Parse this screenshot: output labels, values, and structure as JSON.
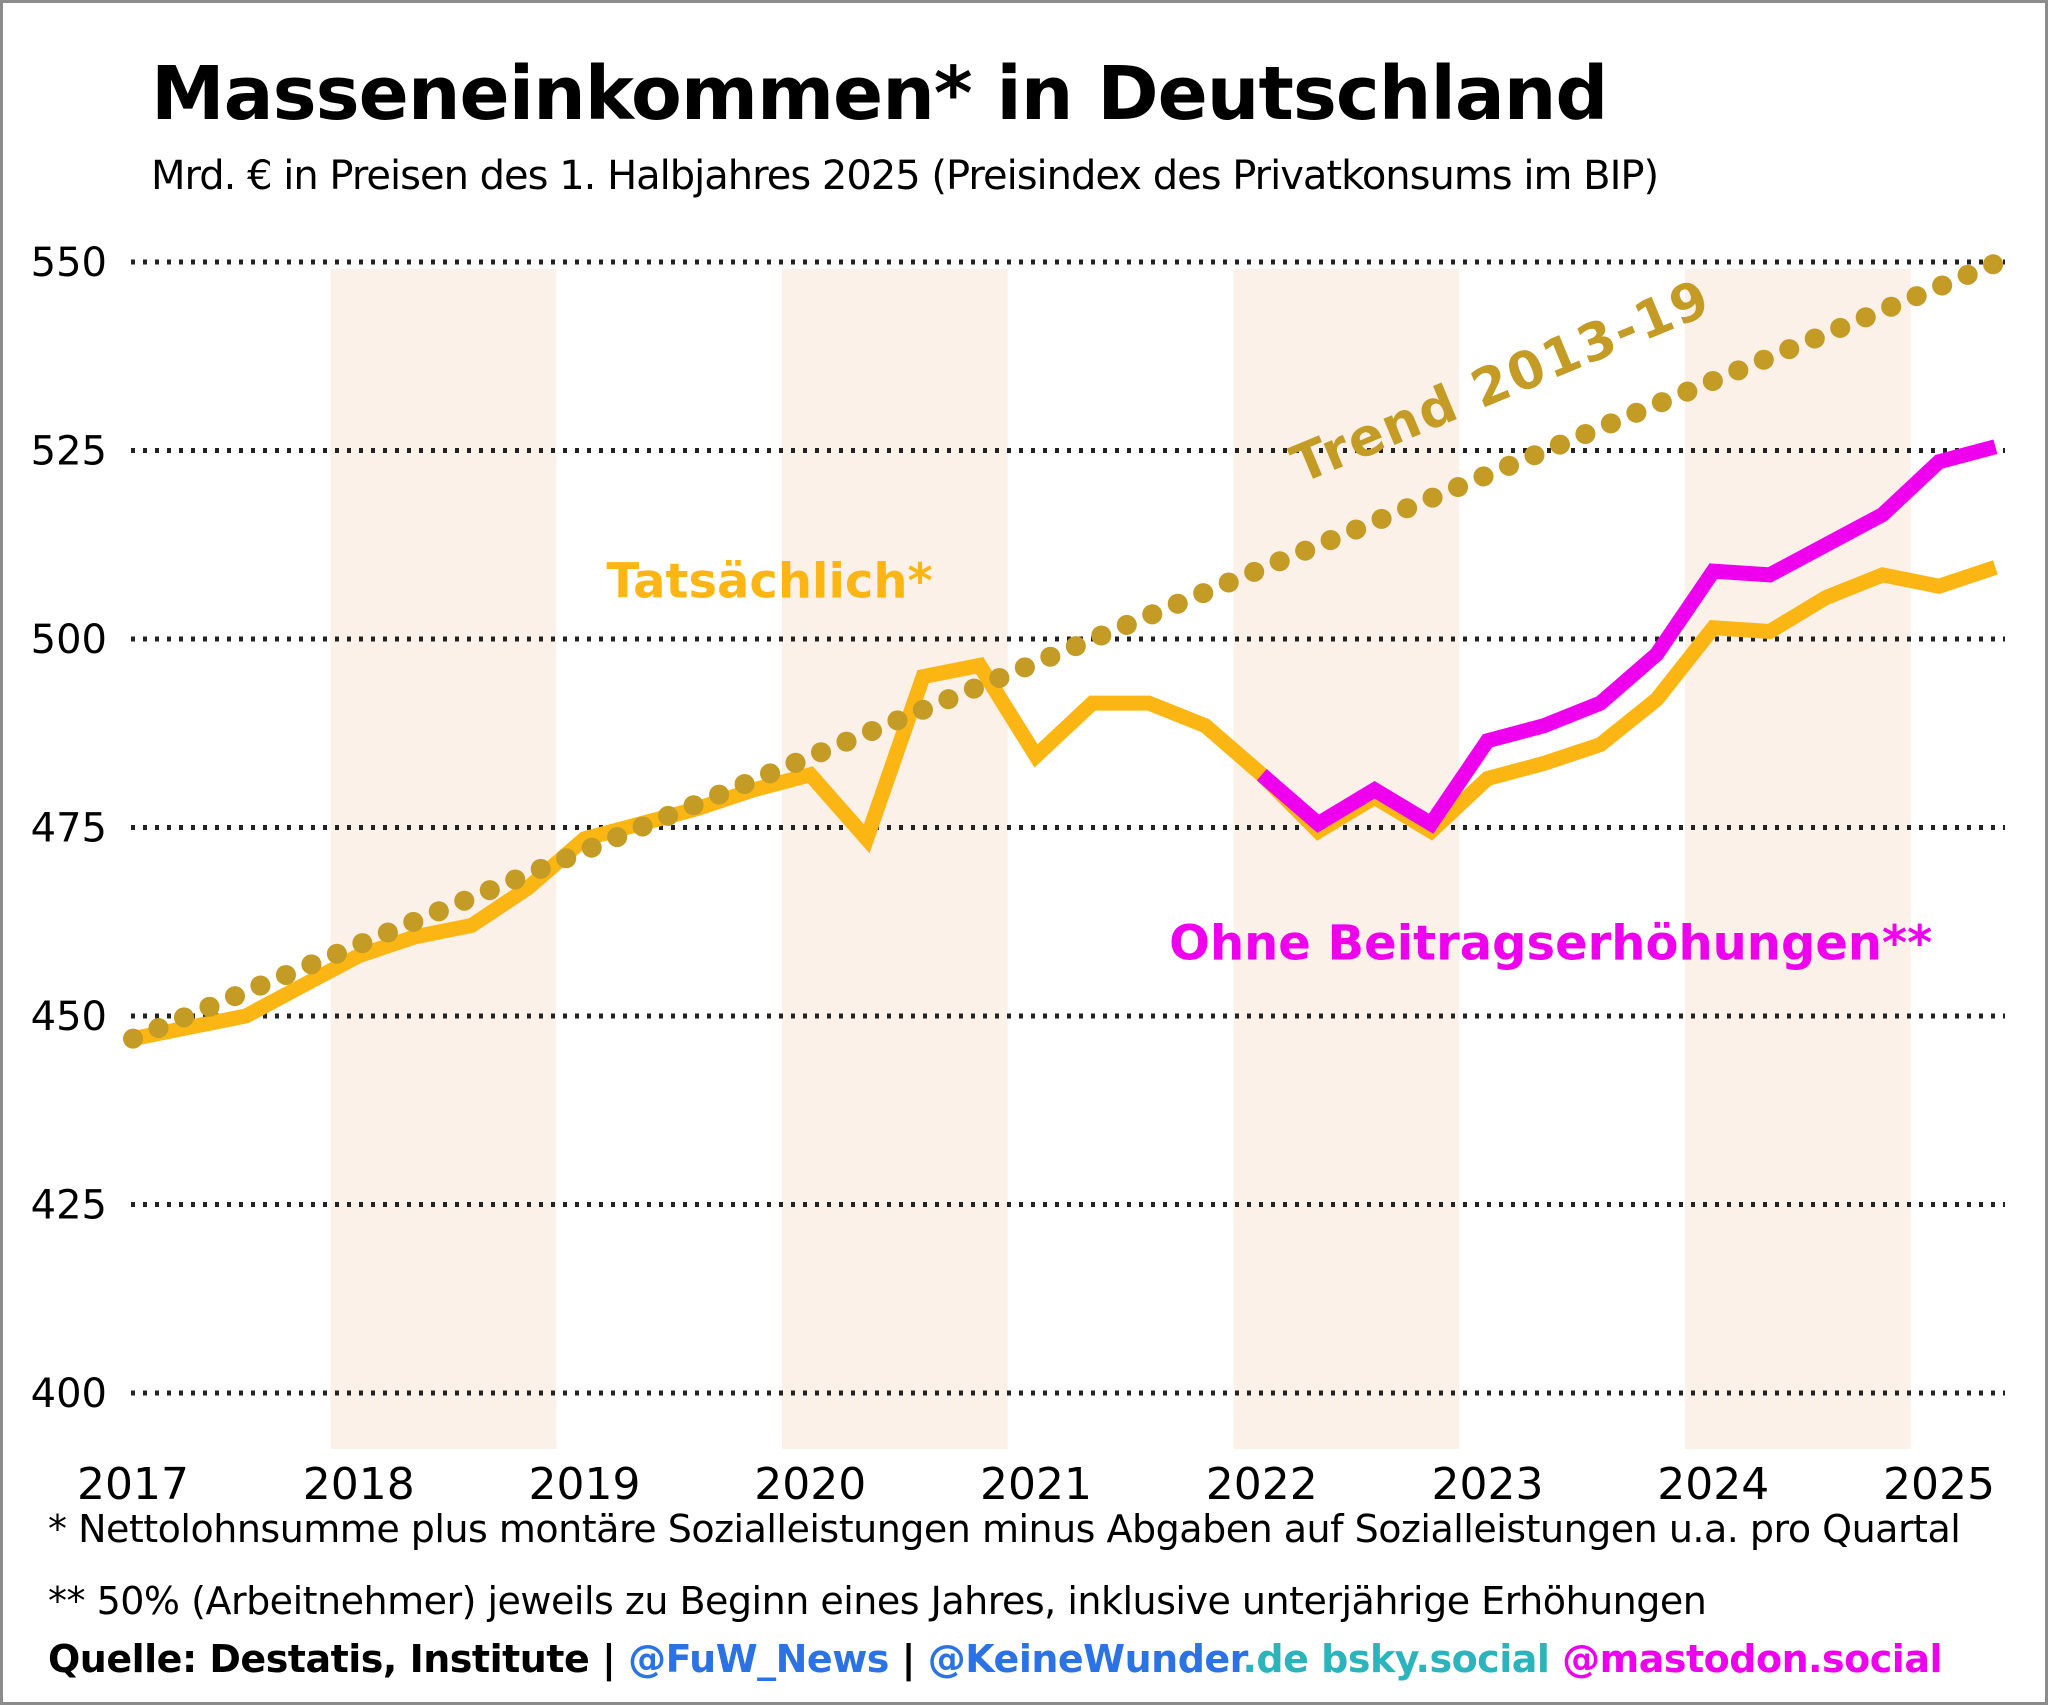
{
  "title": "Masseneinkommen* in Deutschland",
  "subtitle": "Mrd. € in Preisen des 1. Halbjahres 2025 (Preisindex des Privatkonsums im BIP)",
  "footnotes": {
    "line1": "* Nettolohnsumme plus montäre Sozialleistungen minus Abgaben auf Sozialleistungen u.a. pro Quartal",
    "line2": "** 50% (Arbeitnehmer) jeweils zu Beginn eines Jahres, inklusive unterjährige Erhöhungen"
  },
  "source_line": [
    {
      "text": "Quelle: Destatis, Institute | ",
      "color": "#000000"
    },
    {
      "text": "@FuW_News",
      "color": "#2B72E4"
    },
    {
      "text": " | ",
      "color": "#000000"
    },
    {
      "text": "@KeineWunder",
      "color": "#2B72E4"
    },
    {
      "text": ".de",
      "color": "#2CB4BC"
    },
    {
      "text": " bsky.social",
      "color": "#2CB4BC"
    },
    {
      "text": " @mastodon.social",
      "color": "#EE00EE"
    }
  ],
  "chart_data": {
    "type": "line",
    "title": "Masseneinkommen* in Deutschland",
    "subtitle": "Mrd. € in Preisen des 1. Halbjahres 2025 (Preisindex des Privatkonsums im BIP)",
    "ylabel": "Mrd. €",
    "xlabel": "",
    "x_axis": {
      "ticks": [
        2017,
        2018,
        2019,
        2020,
        2021,
        2022,
        2023,
        2024,
        2025
      ]
    },
    "y_axis": {
      "ticks": [
        400,
        425,
        450,
        475,
        500,
        525,
        550
      ],
      "ylim": [
        400,
        550
      ]
    },
    "grid": "dotted-horizontal",
    "band_years": [
      2018,
      2020,
      2022,
      2024
    ],
    "band_color": "#FBF1E9",
    "grid_color": "#222222",
    "series": [
      {
        "name": "Tatsächlich*",
        "color": "#FCB614",
        "style": "solid",
        "x_start": 2017.0,
        "x_step": 0.25,
        "values": [
          447,
          448.5,
          450,
          454,
          458,
          460.5,
          462,
          467,
          473.5,
          475.5,
          477.5,
          480,
          482,
          473.5,
          495,
          496.5,
          484.5,
          491.5,
          491.5,
          488.5,
          482,
          474.5,
          479,
          474.5,
          481.5,
          483.5,
          486,
          492,
          501.5,
          501,
          505.5,
          508.5,
          507,
          509.5
        ]
      },
      {
        "name": "Ohne Beitragserhöhungen**",
        "color": "#EE00EE",
        "style": "solid",
        "x_start": 2022.0,
        "x_step": 0.25,
        "values": [
          482,
          475.5,
          480,
          475.5,
          486.5,
          488.5,
          491.5,
          498,
          509,
          508.5,
          512.5,
          516.5,
          523.5,
          525.5
        ]
      },
      {
        "name": "Trend 2013-19",
        "color": "#C49B25",
        "style": "dotted",
        "points": [
          [
            2017.0,
            447
          ],
          [
            2025.28,
            550.2
          ]
        ]
      }
    ],
    "annotations": [
      {
        "text": "Tatsächlich*",
        "x": 2019.82,
        "y": 505.5,
        "color": "#FCB614",
        "rotate": 0,
        "size": 48
      },
      {
        "text": "Ohne Beitragserhöhungen**",
        "x": 2023.28,
        "y": 457.5,
        "color": "#EE00EE",
        "rotate": 0,
        "size": 48
      },
      {
        "text": "Trend 2013-19",
        "x": 2023.09,
        "y": 532,
        "color": "#C49B25",
        "rotate": -22.6,
        "size": 52
      }
    ]
  }
}
